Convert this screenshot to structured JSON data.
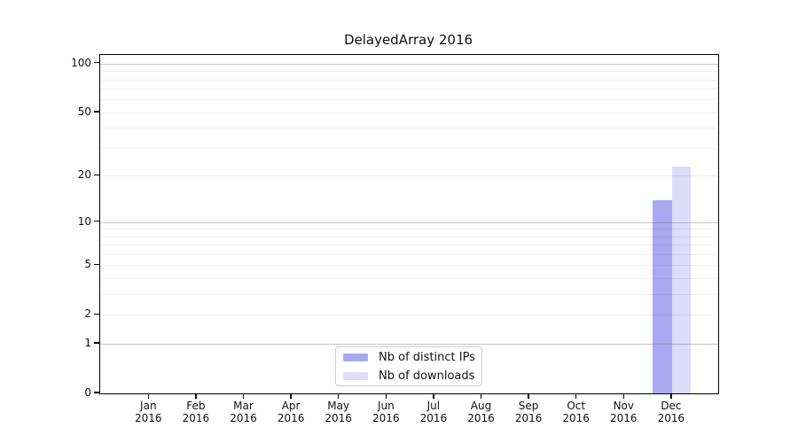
{
  "title": "DelayedArray 2016",
  "chart_data": {
    "type": "bar",
    "title": "DelayedArray 2016",
    "categories": [
      "Jan",
      "Feb",
      "Mar",
      "Apr",
      "May",
      "Jun",
      "Jul",
      "Aug",
      "Sep",
      "Oct",
      "Nov",
      "Dec"
    ],
    "x_tick_year": "2016",
    "series": [
      {
        "name": "Nb of distinct IPs",
        "color": "#a9a9f0",
        "values": [
          0,
          0,
          0,
          0,
          0,
          0,
          0,
          0,
          0,
          0,
          0,
          14
        ]
      },
      {
        "name": "Nb of downloads",
        "color": "#dcdcf8",
        "values": [
          0,
          0,
          0,
          0,
          0,
          0,
          0,
          0,
          0,
          0,
          0,
          23
        ]
      }
    ],
    "y_ticks": [
      0,
      1,
      2,
      5,
      10,
      20,
      50,
      100
    ],
    "y_minor_gridlines": [
      2,
      3,
      4,
      5,
      6,
      7,
      8,
      9,
      20,
      30,
      40,
      50,
      60,
      70,
      80,
      90
    ],
    "y_major_gridlines": [
      1,
      10,
      100
    ],
    "scale": "log1p",
    "ylim": [
      0,
      114
    ],
    "xlabel": "",
    "ylabel": "",
    "grid": true,
    "legend_position": "bottom-center",
    "legend_labels": [
      "Nb of distinct IPs",
      "Nb of downloads"
    ]
  }
}
